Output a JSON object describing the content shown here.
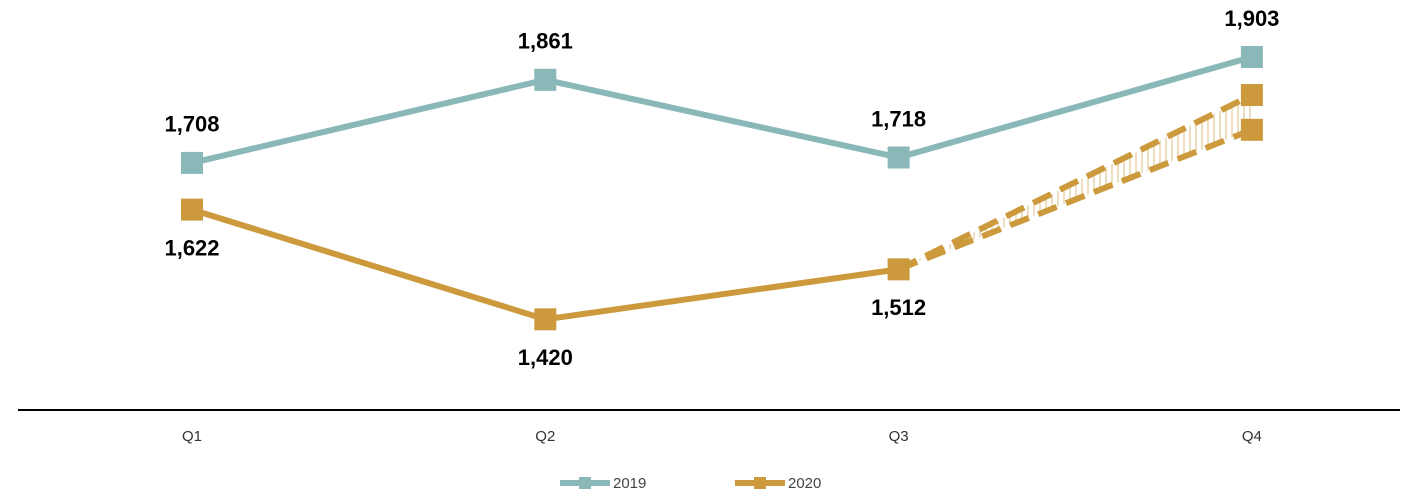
{
  "chart_data": {
    "type": "line",
    "categories": [
      "Q1",
      "Q2",
      "Q3",
      "Q4"
    ],
    "series": [
      {
        "name": "2019",
        "color": "#8ab8b8",
        "values": [
          1708,
          1861,
          1718,
          1903
        ],
        "value_labels": [
          "1,708",
          "1,861",
          "1,718",
          "1,903"
        ]
      },
      {
        "name": "2020",
        "color": "#cc9a3c",
        "values": [
          1622,
          1420,
          1512,
          null
        ],
        "value_labels": [
          "1,622",
          "1,420",
          "1,512",
          null
        ]
      }
    ],
    "forecast": {
      "color": "#cc9a3c",
      "high": [
        null,
        null,
        null,
        1833
      ],
      "low": [
        null,
        null,
        null,
        1769
      ]
    },
    "ylim": [
      1253,
      2008
    ]
  }
}
